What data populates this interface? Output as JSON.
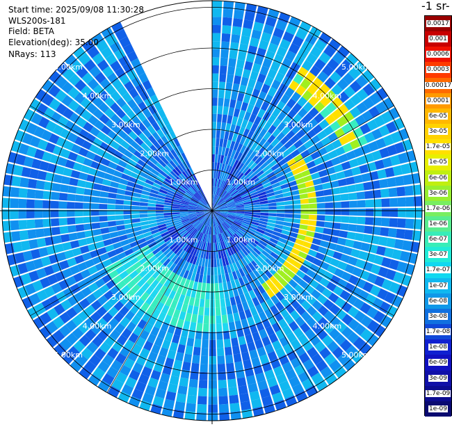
{
  "header": {
    "start_time": "Start time: 2025/09/08 11:30:28",
    "instrument": "WLS200s-181",
    "field": "Field: BETA",
    "elevation": "Elevation(deg): 35.00",
    "nrays": "NRays: 113"
  },
  "colorbar": {
    "title": "-1 sr-",
    "labels": [
      "0.0017",
      "0.001",
      "0.0006",
      "0.0003",
      "0.00017",
      "0.0001",
      "6e-05",
      "3e-05",
      "1.7e-05",
      "1e-05",
      "6e-06",
      "3e-06",
      "1.7e-06",
      "1e-06",
      "6e-07",
      "3e-07",
      "1.7e-07",
      "1e-07",
      "6e-08",
      "3e-08",
      "1.7e-08",
      "1e-08",
      "6e-09",
      "3e-09",
      "1.7e-09",
      "1e-09"
    ],
    "colors": [
      "#9a0000",
      "#c80000",
      "#f01000",
      "#ff3a00",
      "#ff6a00",
      "#ff9a00",
      "#ffb800",
      "#ffd200",
      "#ffe000",
      "#e8ef00",
      "#c0ef10",
      "#98ef30",
      "#78ee60",
      "#58ed90",
      "#38edb8",
      "#20ebd8",
      "#10d8f0",
      "#10b8f0",
      "#1098e8",
      "#1070e0",
      "#1048d8",
      "#1020d0",
      "#1010c0",
      "#1010a8",
      "#0c0c90",
      "#0a0a70"
    ]
  },
  "range_labels": [
    "1.00km",
    "2.00km",
    "3.00km",
    "4.00km",
    "5.00km"
  ]
}
